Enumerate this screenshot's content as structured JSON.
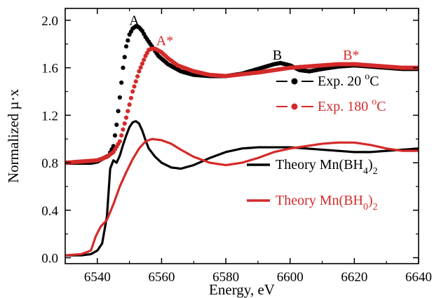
{
  "chart_data": {
    "type": "line",
    "xlabel": "Energy, eV",
    "ylabel": "Normalized µ·x",
    "xlim": [
      6530,
      6640
    ],
    "ylim": [
      -0.05,
      2.1
    ],
    "xticks": [
      6540,
      6560,
      6580,
      6600,
      6620,
      6640
    ],
    "xtick_labels": [
      "6540",
      "6560",
      "6580",
      "6600",
      "6620",
      "6640"
    ],
    "yticks": [
      0.0,
      0.4,
      0.8,
      1.2,
      1.6,
      2.0
    ],
    "ytick_labels": [
      "0.0",
      "0.4",
      "0.8",
      "1.2",
      "1.6",
      "2.0"
    ],
    "grid": false,
    "legend_placement": "right",
    "colors": {
      "black": "#000000",
      "red": "#d42a2a"
    },
    "annotations": [
      {
        "label": "A",
        "x": 6551.5,
        "y": 1.96,
        "color": "#000000"
      },
      {
        "label": "A*",
        "x": 6561,
        "y": 1.79,
        "color": "#d42a2a"
      },
      {
        "label": "B",
        "x": 6596,
        "y": 1.67,
        "color": "#000000"
      },
      {
        "label": "B*",
        "x": 6619,
        "y": 1.67,
        "color": "#d42a2a"
      }
    ],
    "series": [
      {
        "name": "Exp. 20 °C",
        "style": "points",
        "color": "#000000",
        "x": [
          6530,
          6538,
          6540,
          6542,
          6543.5,
          6545,
          6546,
          6547,
          6548,
          6549,
          6550,
          6551,
          6552,
          6553,
          6554,
          6555,
          6557,
          6559,
          6562,
          6566,
          6570,
          6575,
          6580,
          6585,
          6590,
          6595,
          6597,
          6600,
          6603,
          6606,
          6610,
          6615,
          6620,
          6625,
          6630,
          6635,
          6640
        ],
        "y": [
          0.8,
          0.8,
          0.81,
          0.84,
          0.86,
          0.94,
          1.12,
          1.35,
          1.6,
          1.78,
          1.88,
          1.93,
          1.95,
          1.94,
          1.91,
          1.86,
          1.78,
          1.7,
          1.63,
          1.57,
          1.54,
          1.53,
          1.53,
          1.55,
          1.59,
          1.63,
          1.64,
          1.62,
          1.58,
          1.57,
          1.59,
          1.61,
          1.62,
          1.61,
          1.6,
          1.59,
          1.59
        ]
      },
      {
        "name": "Exp. 180 °C",
        "style": "points",
        "color": "#d42a2a",
        "x": [
          6530,
          6540,
          6543,
          6545,
          6547,
          6549,
          6551,
          6553,
          6555,
          6556,
          6557,
          6558,
          6560,
          6562,
          6565,
          6570,
          6575,
          6580,
          6590,
          6600,
          6610,
          6615,
          6620,
          6625,
          6630,
          6635,
          6640
        ],
        "y": [
          0.8,
          0.82,
          0.85,
          0.89,
          0.98,
          1.18,
          1.4,
          1.57,
          1.7,
          1.75,
          1.76,
          1.76,
          1.73,
          1.68,
          1.62,
          1.57,
          1.54,
          1.53,
          1.56,
          1.6,
          1.62,
          1.63,
          1.63,
          1.62,
          1.61,
          1.6,
          1.6
        ]
      },
      {
        "name": "Theory Mn(BH4)2",
        "style": "line",
        "color": "#000000",
        "x": [
          6530,
          6535,
          6538,
          6540,
          6541.5,
          6543,
          6544,
          6545,
          6546,
          6547,
          6548,
          6549,
          6550,
          6551,
          6552,
          6553,
          6554,
          6555,
          6556,
          6558,
          6560,
          6563,
          6566,
          6570,
          6575,
          6580,
          6585,
          6590,
          6595,
          6600,
          6605,
          6610,
          6615,
          6620,
          6625,
          6630,
          6635,
          6640
        ],
        "y": [
          0.02,
          0.02,
          0.03,
          0.06,
          0.12,
          0.35,
          0.75,
          0.82,
          0.8,
          0.86,
          0.95,
          1.03,
          1.1,
          1.14,
          1.15,
          1.13,
          1.07,
          0.99,
          0.92,
          0.85,
          0.8,
          0.76,
          0.75,
          0.78,
          0.84,
          0.89,
          0.92,
          0.93,
          0.93,
          0.93,
          0.92,
          0.91,
          0.9,
          0.89,
          0.89,
          0.9,
          0.91,
          0.92
        ]
      },
      {
        "name": "Theory Mn(BH0)2",
        "style": "line",
        "color": "#d42a2a",
        "x": [
          6530,
          6535,
          6538,
          6539.5,
          6541,
          6543,
          6545,
          6547,
          6549,
          6551,
          6553,
          6555,
          6557,
          6560,
          6563,
          6566,
          6570,
          6575,
          6580,
          6585,
          6590,
          6595,
          6600,
          6605,
          6610,
          6615,
          6620,
          6625,
          6630,
          6635,
          6640
        ],
        "y": [
          0.02,
          0.03,
          0.06,
          0.18,
          0.26,
          0.32,
          0.45,
          0.6,
          0.72,
          0.83,
          0.92,
          0.98,
          1.0,
          0.99,
          0.96,
          0.91,
          0.85,
          0.8,
          0.78,
          0.8,
          0.84,
          0.89,
          0.92,
          0.94,
          0.96,
          0.97,
          0.97,
          0.95,
          0.92,
          0.9,
          0.9
        ]
      }
    ],
    "legend": [
      {
        "label": "Exp. 20 ",
        "sup": "o",
        "tail": "C",
        "color": "#000000",
        "kind": "line-dot"
      },
      {
        "label": "Exp. 180 ",
        "sup": "o",
        "tail": "C",
        "color": "#d42a2a",
        "kind": "line-dot"
      },
      {
        "label": "Theory Mn(BH",
        "sub": "4",
        "tail": ")",
        "sub2": "2",
        "color": "#000000",
        "kind": "line"
      },
      {
        "label": "Theory Mn(BH",
        "sub": "0",
        "tail": ")",
        "sub2": "2",
        "color": "#d42a2a",
        "kind": "line"
      }
    ]
  }
}
